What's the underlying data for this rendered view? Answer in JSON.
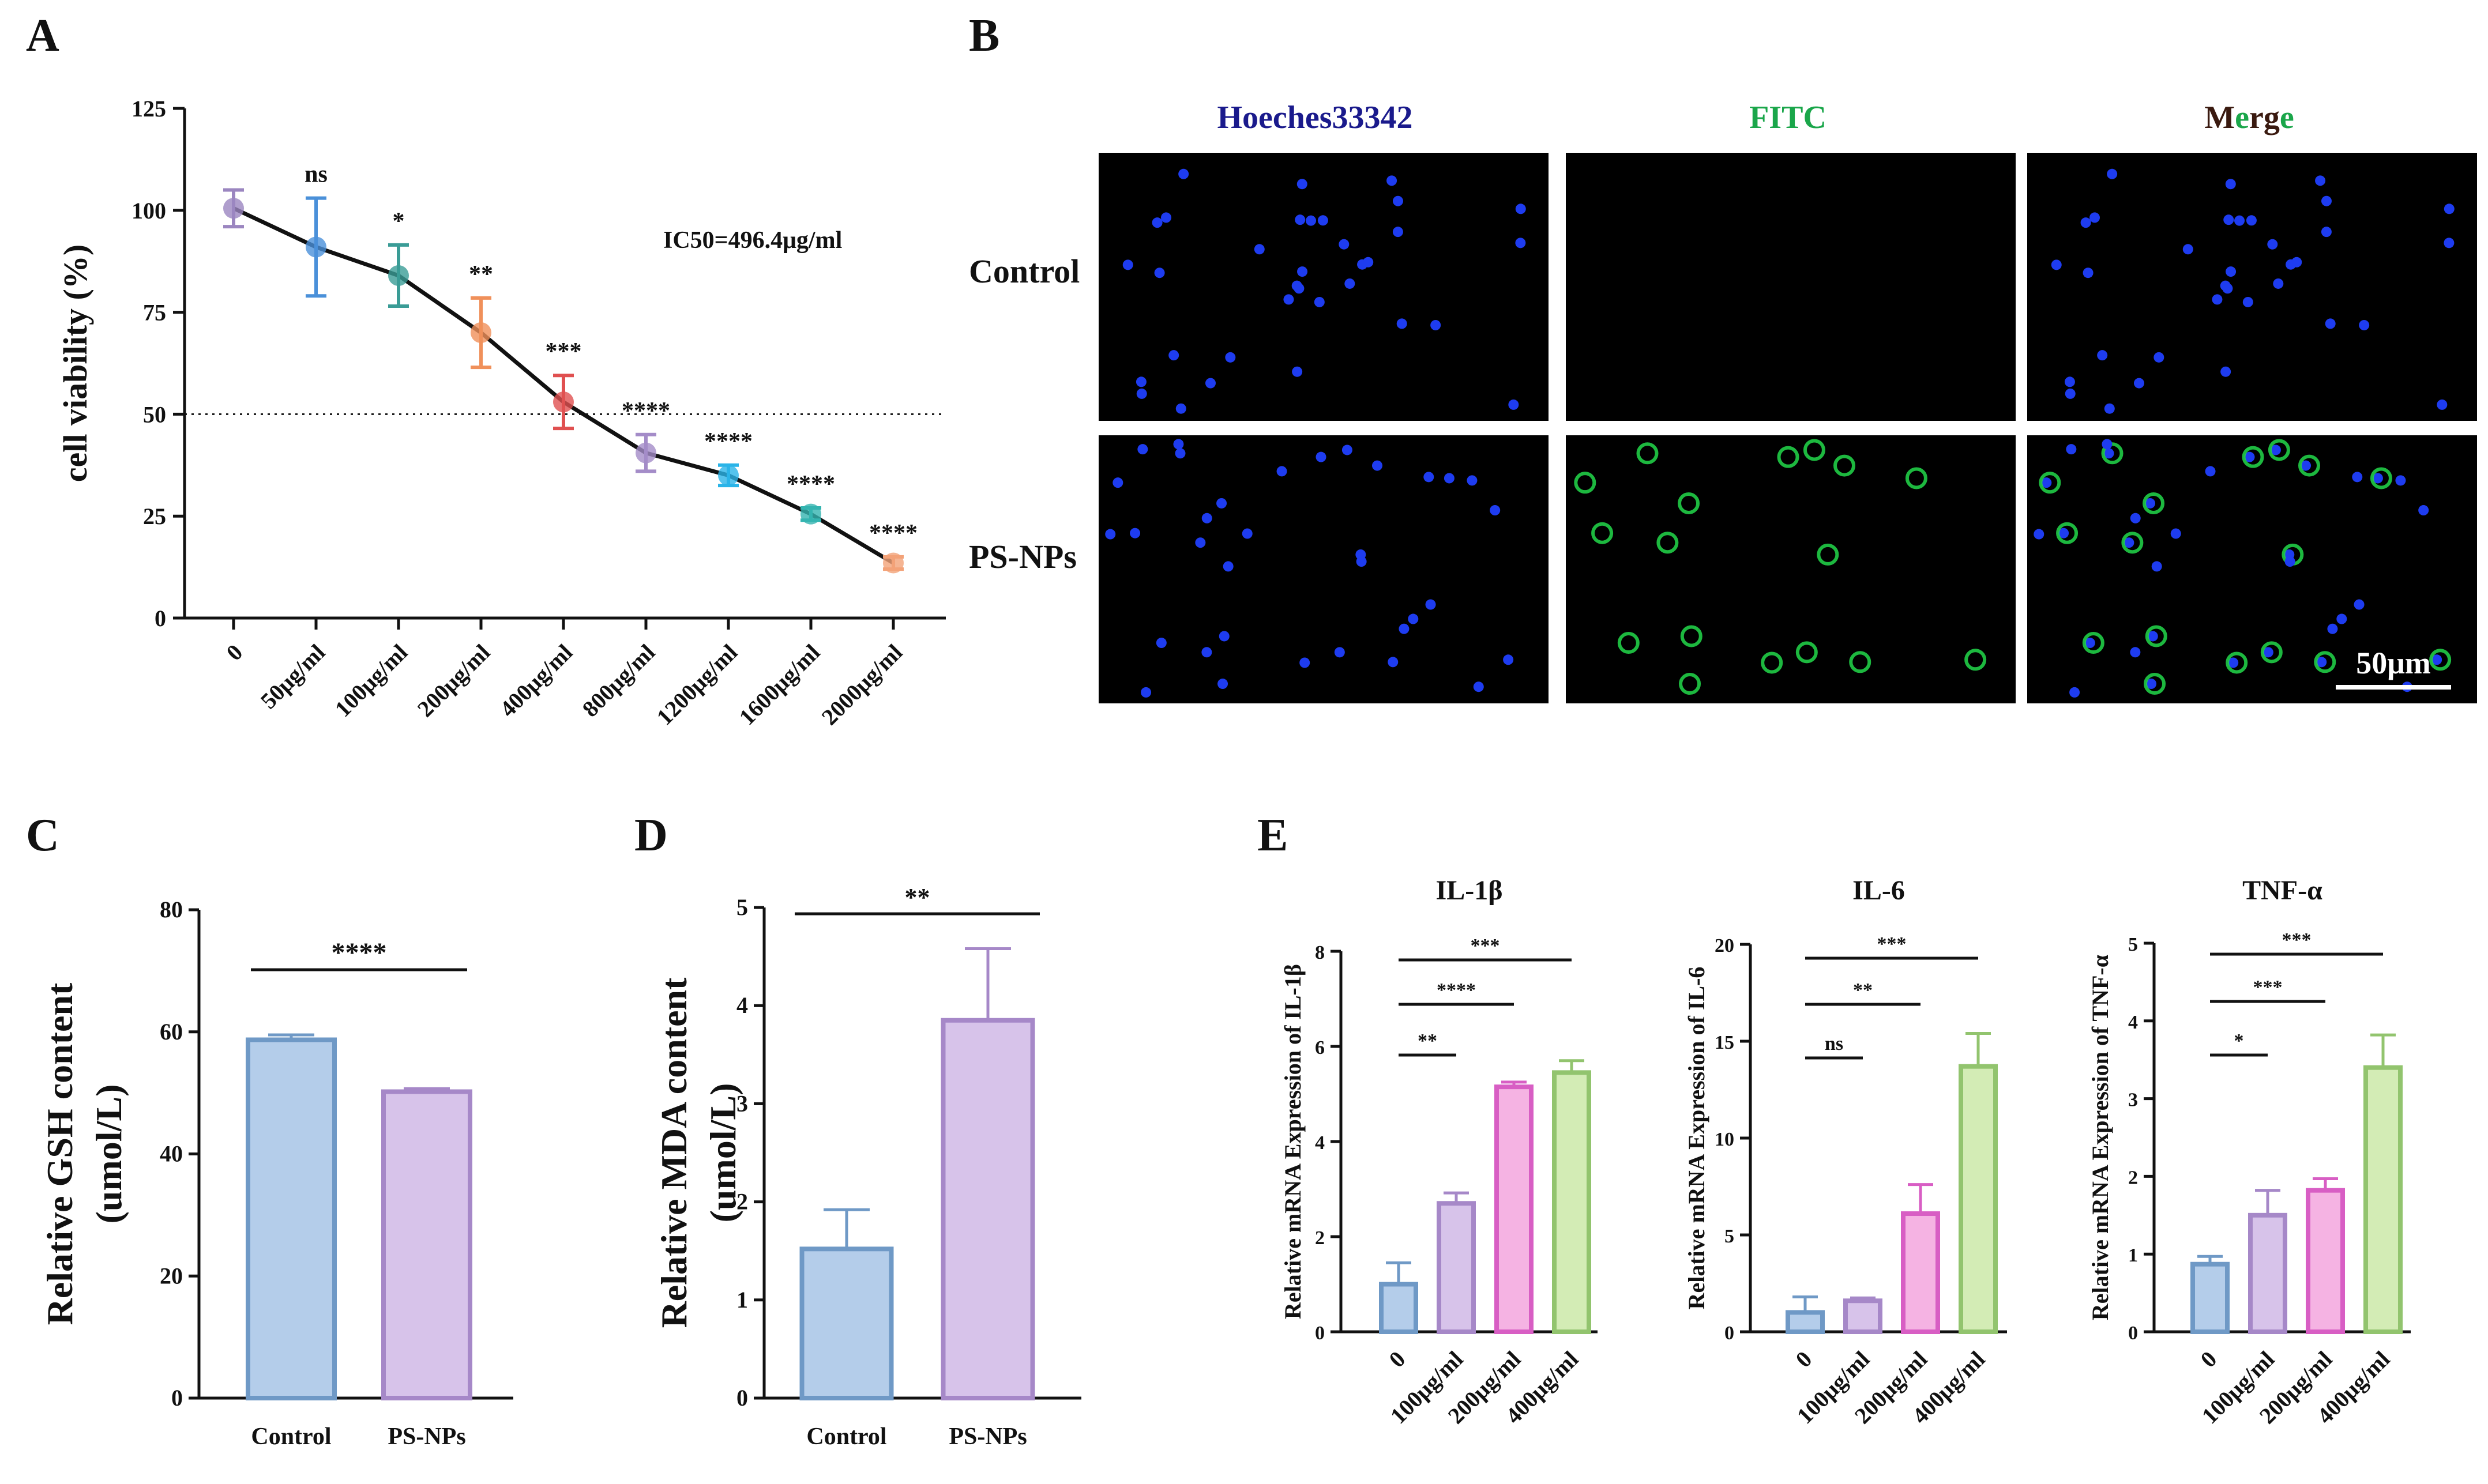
{
  "panels": {
    "A": "A",
    "B": "B",
    "C": "C",
    "D": "D",
    "E": "E"
  },
  "microscopy": {
    "columns": [
      "Hoeches33342",
      "FITC",
      "Merge"
    ],
    "merge_parts": [
      "M",
      "e",
      "rg",
      "e"
    ],
    "rows": [
      "Control",
      "PS-NPs"
    ],
    "scale_bar": "50μm",
    "colors": {
      "hoechst": "#1a1a8c",
      "fitc": "#1aa64a",
      "merge_dark": "#3a1a10"
    }
  },
  "chart_data": [
    {
      "id": "A",
      "type": "line",
      "ylabel": "cell viability (%)",
      "categories": [
        "0",
        "50μg/ml",
        "100μg/ml",
        "200μg/ml",
        "400μg/ml",
        "800μg/ml",
        "1200μg/ml",
        "1600μg/ml",
        "2000μg/ml"
      ],
      "values": [
        100.5,
        91,
        84,
        70,
        53,
        40.5,
        35,
        25.5,
        13.5
      ],
      "errors": [
        4.5,
        12,
        7.5,
        8.5,
        6.5,
        4.5,
        2.5,
        1.5,
        1.5
      ],
      "significance": [
        "",
        "ns",
        "*",
        "**",
        "***",
        "****",
        "****",
        "****",
        "****"
      ],
      "marker_colors": [
        "#9b86c0",
        "#4a90d9",
        "#3a9c96",
        "#f0905a",
        "#e05050",
        "#a48cc8",
        "#2ab4e8",
        "#34b4b0",
        "#f3a278"
      ],
      "ylim": [
        0,
        125
      ],
      "yticks": [
        0,
        25,
        50,
        75,
        100,
        125
      ],
      "reference_line": 50,
      "annotation": "IC50=496.4μg/ml"
    },
    {
      "id": "C",
      "type": "bar",
      "ylabel": [
        "Relative  GSH  content",
        "(umol/L)"
      ],
      "categories": [
        "Control",
        "PS-NPs"
      ],
      "values": [
        58.7,
        50.2
      ],
      "errors": [
        0.8,
        0.5
      ],
      "colors": [
        "#b4cdea",
        "#d7c3ea"
      ],
      "edge_colors": [
        "#6f99c6",
        "#a688c8"
      ],
      "ylim": [
        0,
        80
      ],
      "yticks": [
        0,
        20,
        40,
        60,
        80
      ],
      "comparisons": [
        {
          "from": 0,
          "to": 1,
          "label": "****"
        }
      ]
    },
    {
      "id": "D",
      "type": "bar",
      "ylabel": [
        "Relative  MDA  content",
        "(umol/L)"
      ],
      "categories": [
        "Control",
        "PS-NPs"
      ],
      "values": [
        1.52,
        3.85
      ],
      "errors": [
        0.4,
        0.73
      ],
      "colors": [
        "#b4cdea",
        "#d7c3ea"
      ],
      "edge_colors": [
        "#6f99c6",
        "#a688c8"
      ],
      "ylim": [
        0,
        5
      ],
      "yticks": [
        0,
        1,
        2,
        3,
        4,
        5
      ],
      "comparisons": [
        {
          "from": 0,
          "to": 1,
          "label": "**"
        }
      ]
    },
    {
      "id": "E1",
      "type": "bar",
      "title": "IL-1β",
      "ylabel": "Relative mRNA Expression of IL-1β",
      "categories": [
        "0",
        "100μg/ml",
        "200μg/ml",
        "400μg/ml"
      ],
      "values": [
        1.0,
        2.7,
        5.15,
        5.45
      ],
      "errors": [
        0.45,
        0.22,
        0.1,
        0.25
      ],
      "colors": [
        "#b4cdea",
        "#d7c3ea",
        "#f5b3e3",
        "#d3ecb5"
      ],
      "edge_colors": [
        "#6f99c6",
        "#a688c8",
        "#d85ec4",
        "#92c46e"
      ],
      "ylim": [
        0,
        8
      ],
      "yticks": [
        0,
        2,
        4,
        6,
        8
      ],
      "comparisons": [
        {
          "from": 0,
          "to": 1,
          "label": "**"
        },
        {
          "from": 0,
          "to": 2,
          "label": "****"
        },
        {
          "from": 0,
          "to": 3,
          "label": "***"
        }
      ]
    },
    {
      "id": "E2",
      "type": "bar",
      "title": "IL-6",
      "ylabel": "Relative mRNA Expression of IL-6",
      "categories": [
        "0",
        "100μg/ml",
        "200μg/ml",
        "400μg/ml"
      ],
      "values": [
        1.0,
        1.6,
        6.1,
        13.7
      ],
      "errors": [
        0.8,
        0.15,
        1.5,
        1.7
      ],
      "colors": [
        "#b4cdea",
        "#d7c3ea",
        "#f5b3e3",
        "#d3ecb5"
      ],
      "edge_colors": [
        "#6f99c6",
        "#a688c8",
        "#d85ec4",
        "#92c46e"
      ],
      "ylim": [
        0,
        20
      ],
      "yticks": [
        0,
        5,
        10,
        15,
        20
      ],
      "comparisons": [
        {
          "from": 0,
          "to": 1,
          "label": "ns"
        },
        {
          "from": 0,
          "to": 2,
          "label": "**"
        },
        {
          "from": 0,
          "to": 3,
          "label": "***"
        }
      ]
    },
    {
      "id": "E3",
      "type": "bar",
      "title": "TNF-α",
      "ylabel": "Relative mRNA Expression of TNF-α",
      "categories": [
        "0",
        "100μg/ml",
        "200μg/ml",
        "400μg/ml"
      ],
      "values": [
        0.87,
        1.5,
        1.82,
        3.4
      ],
      "errors": [
        0.1,
        0.32,
        0.15,
        0.42
      ],
      "colors": [
        "#b4cdea",
        "#d7c3ea",
        "#f5b3e3",
        "#d3ecb5"
      ],
      "edge_colors": [
        "#6f99c6",
        "#a688c8",
        "#d85ec4",
        "#92c46e"
      ],
      "ylim": [
        0,
        5
      ],
      "yticks": [
        0,
        1,
        2,
        3,
        4,
        5
      ],
      "comparisons": [
        {
          "from": 0,
          "to": 1,
          "label": "*"
        },
        {
          "from": 0,
          "to": 2,
          "label": "***"
        },
        {
          "from": 0,
          "to": 3,
          "label": "***"
        }
      ]
    }
  ]
}
